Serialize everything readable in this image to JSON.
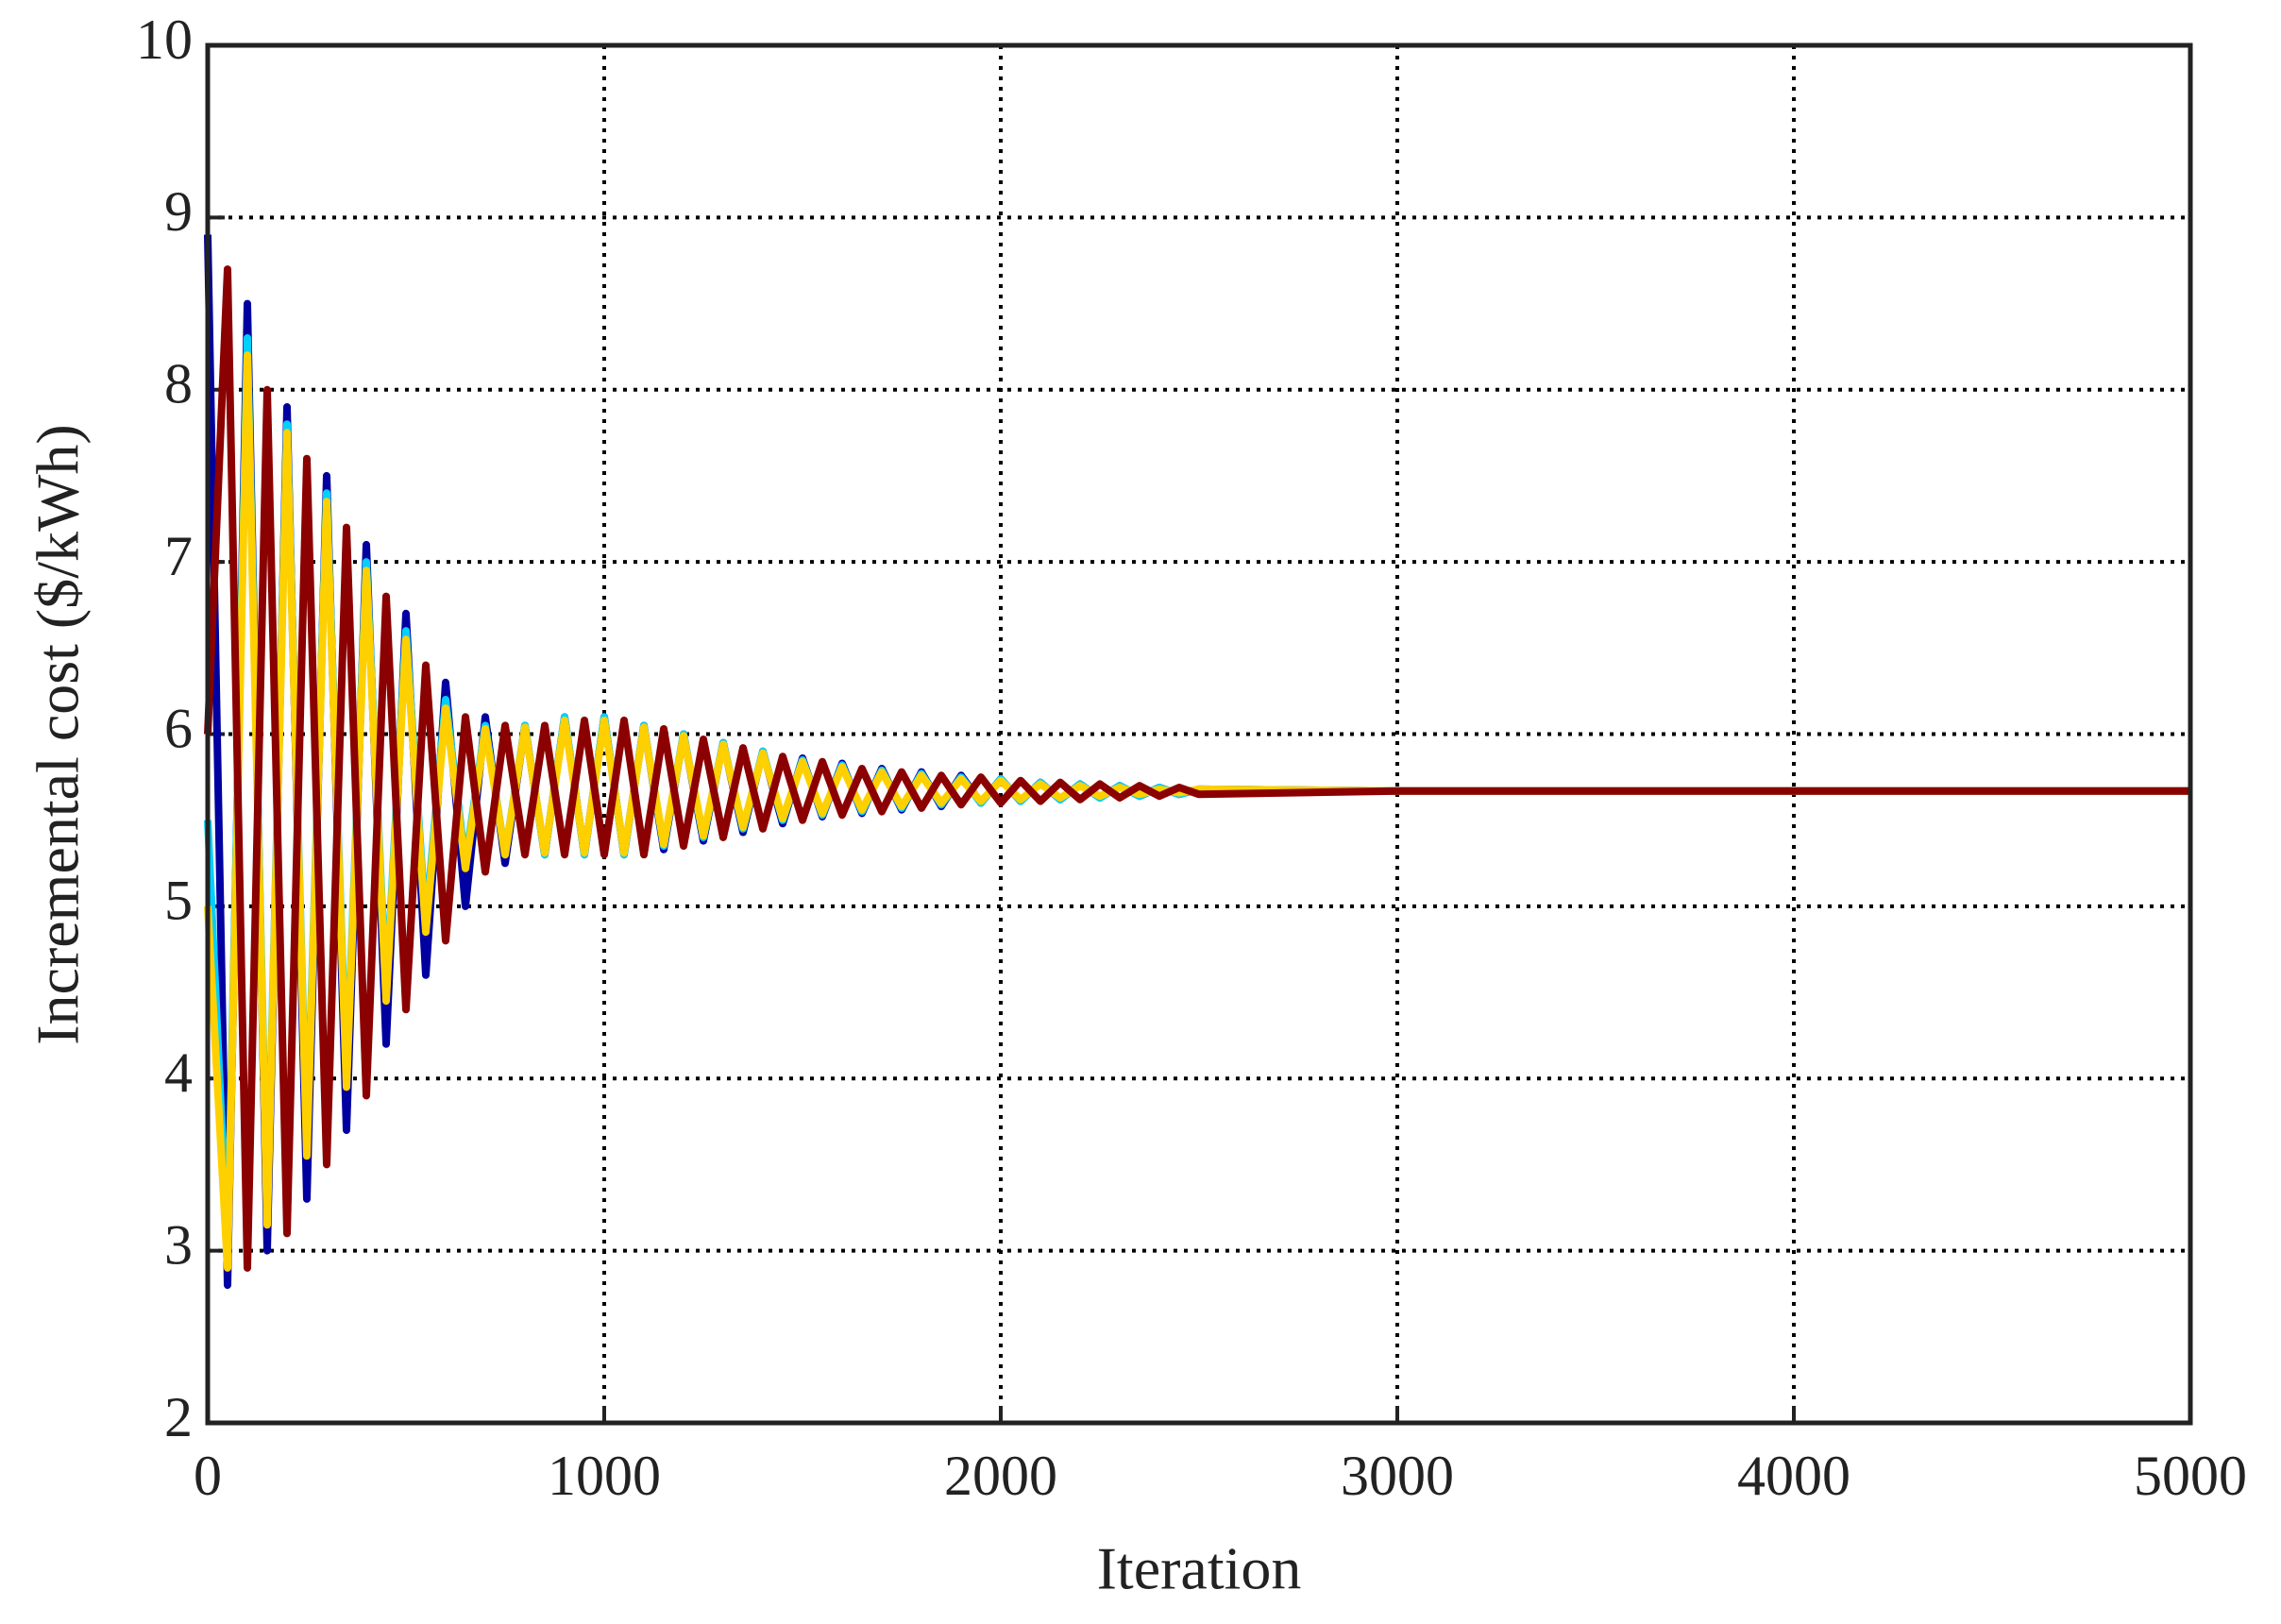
{
  "chart_data": {
    "type": "line",
    "xlabel": "Iteration",
    "ylabel": "Incremental cost ($/kWh)",
    "xlim": [
      0,
      5000
    ],
    "ylim": [
      2,
      10
    ],
    "xticks": [
      0,
      1000,
      2000,
      3000,
      4000,
      5000
    ],
    "yticks": [
      2,
      3,
      4,
      5,
      6,
      7,
      8,
      9,
      10
    ],
    "grid": true,
    "x": [
      0,
      50,
      100,
      150,
      200,
      250,
      300,
      350,
      400,
      450,
      500,
      550,
      600,
      650,
      700,
      750,
      800,
      850,
      900,
      950,
      1000,
      1050,
      1100,
      1150,
      1200,
      1250,
      1300,
      1350,
      1400,
      1450,
      1500,
      1550,
      1600,
      1650,
      1700,
      1750,
      1800,
      1850,
      1900,
      1950,
      2000,
      2050,
      2100,
      2150,
      2200,
      2250,
      2300,
      2350,
      2400,
      2450,
      2500,
      3000,
      3500,
      4000,
      4500,
      5000
    ],
    "series": [
      {
        "color": "#0000a0",
        "values": [
          8.9,
          2.8,
          8.5,
          3.0,
          7.9,
          3.3,
          7.5,
          3.7,
          7.1,
          4.2,
          6.7,
          4.6,
          6.3,
          5.0,
          6.1,
          5.25,
          6.05,
          5.3,
          6.1,
          5.3,
          6.1,
          5.3,
          6.05,
          5.33,
          6.0,
          5.38,
          5.95,
          5.43,
          5.9,
          5.48,
          5.86,
          5.52,
          5.83,
          5.54,
          5.8,
          5.56,
          5.78,
          5.58,
          5.76,
          5.6,
          5.74,
          5.61,
          5.72,
          5.62,
          5.71,
          5.63,
          5.7,
          5.64,
          5.69,
          5.65,
          5.68,
          5.67,
          5.67,
          5.67,
          5.67,
          5.67
        ]
      },
      {
        "color": "#00d0ff",
        "values": [
          5.5,
          3.0,
          8.3,
          3.2,
          7.8,
          3.6,
          7.4,
          4.0,
          7.0,
          4.5,
          6.6,
          4.9,
          6.2,
          5.25,
          6.05,
          5.3,
          6.05,
          5.3,
          6.1,
          5.3,
          6.1,
          5.3,
          6.05,
          5.35,
          6.0,
          5.4,
          5.95,
          5.45,
          5.9,
          5.5,
          5.85,
          5.53,
          5.82,
          5.55,
          5.79,
          5.57,
          5.77,
          5.59,
          5.75,
          5.6,
          5.74,
          5.61,
          5.72,
          5.62,
          5.71,
          5.63,
          5.7,
          5.64,
          5.69,
          5.65,
          5.68,
          5.67,
          5.67,
          5.67,
          5.67,
          5.67
        ]
      },
      {
        "color": "#ffd000",
        "values": [
          5.0,
          2.9,
          8.2,
          3.15,
          7.75,
          3.55,
          7.35,
          3.95,
          6.95,
          4.45,
          6.55,
          4.85,
          6.15,
          5.22,
          6.03,
          5.3,
          6.04,
          5.31,
          6.08,
          5.31,
          6.08,
          5.31,
          6.04,
          5.36,
          5.99,
          5.41,
          5.94,
          5.46,
          5.89,
          5.51,
          5.84,
          5.54,
          5.81,
          5.56,
          5.78,
          5.58,
          5.76,
          5.6,
          5.74,
          5.61,
          5.73,
          5.62,
          5.71,
          5.63,
          5.7,
          5.64,
          5.69,
          5.65,
          5.68,
          5.66,
          5.68,
          5.67,
          5.67,
          5.67,
          5.67,
          5.67
        ]
      },
      {
        "color": "#8b0000",
        "values": [
          6.0,
          8.7,
          2.9,
          8.0,
          3.1,
          7.6,
          3.5,
          7.2,
          3.9,
          6.8,
          4.4,
          6.4,
          4.8,
          6.1,
          5.2,
          6.05,
          5.3,
          6.05,
          5.3,
          6.08,
          5.3,
          6.08,
          5.3,
          6.03,
          5.35,
          5.97,
          5.4,
          5.92,
          5.45,
          5.87,
          5.5,
          5.84,
          5.53,
          5.8,
          5.55,
          5.78,
          5.57,
          5.76,
          5.59,
          5.75,
          5.6,
          5.73,
          5.61,
          5.72,
          5.62,
          5.71,
          5.63,
          5.7,
          5.64,
          5.69,
          5.65,
          5.67,
          5.67,
          5.67,
          5.67,
          5.67
        ]
      }
    ]
  }
}
